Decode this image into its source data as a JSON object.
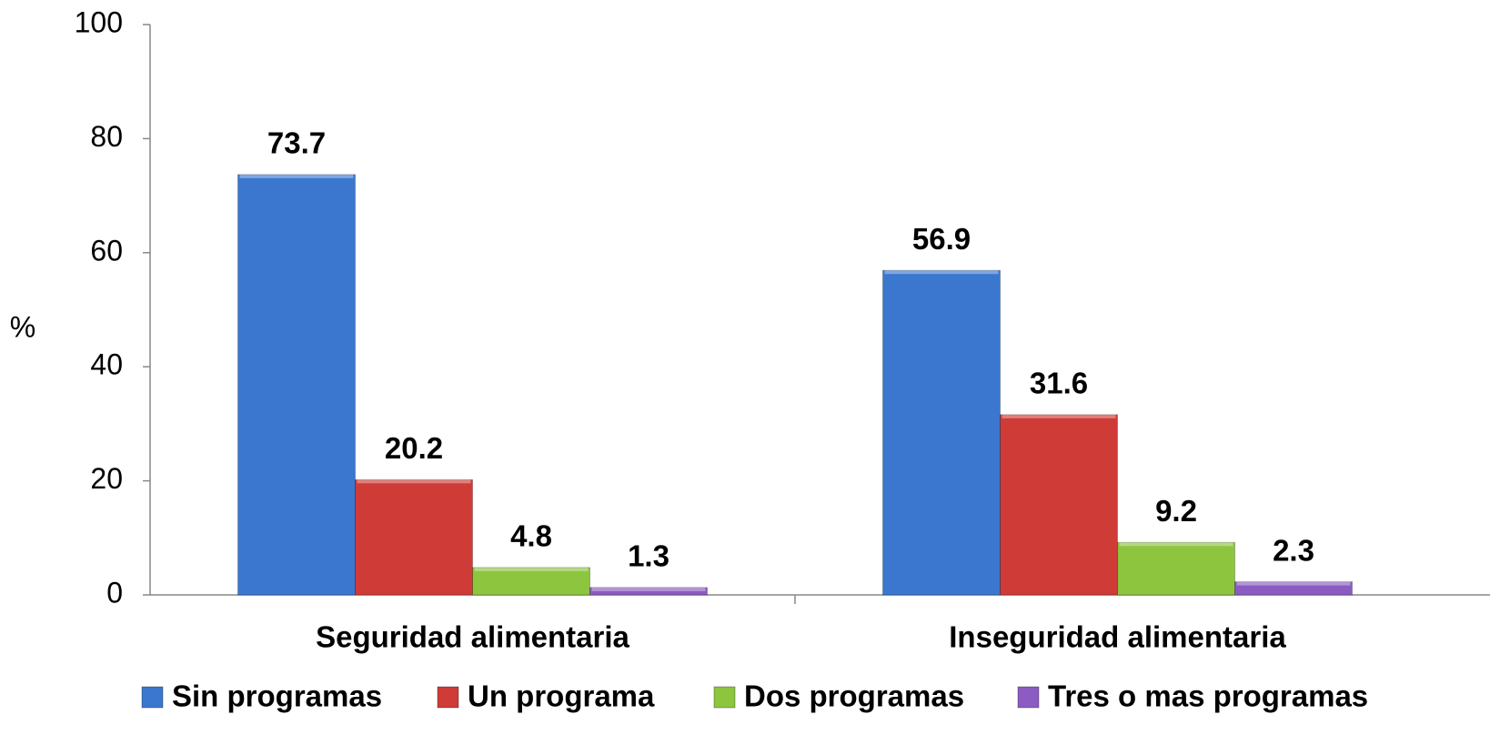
{
  "chart_data": {
    "type": "bar",
    "y_label": "%",
    "categories": [
      "Seguridad alimentaria",
      "Inseguridad alimentaria"
    ],
    "series": [
      {
        "name": "Sin programas",
        "color": "#3b77cf",
        "values": [
          73.7,
          56.9
        ]
      },
      {
        "name": "Un programa",
        "color": "#cf3b37",
        "values": [
          20.2,
          31.6
        ]
      },
      {
        "name": "Dos programas",
        "color": "#8dc53f",
        "values": [
          4.8,
          9.2
        ]
      },
      {
        "name": "Tres o mas programas",
        "color": "#8b5cc2",
        "values": [
          1.3,
          2.3
        ]
      }
    ],
    "ylim": [
      0,
      100
    ],
    "yticks": [
      0,
      20,
      40,
      60,
      80,
      100
    ],
    "legend": "bottom"
  }
}
